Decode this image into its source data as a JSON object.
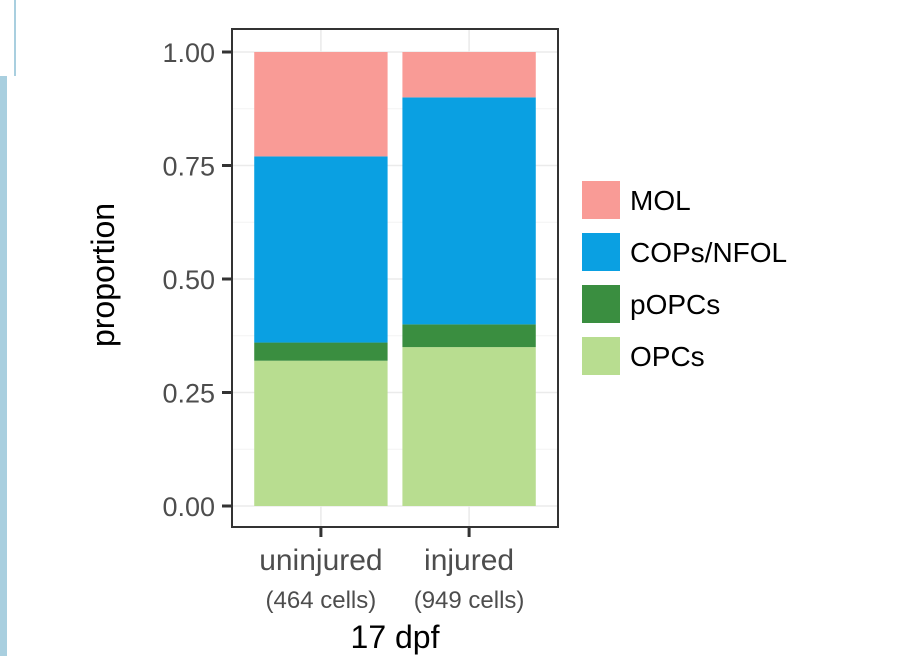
{
  "chart_data": {
    "type": "bar",
    "stacked": true,
    "categories": [
      "uninjured",
      "injured"
    ],
    "category_sublabels": [
      "(464 cells)",
      "(949 cells)"
    ],
    "series": [
      {
        "name": "OPCs",
        "color": "#b8dd90",
        "values": [
          0.32,
          0.35
        ]
      },
      {
        "name": "pOPCs",
        "color": "#3a8e40",
        "values": [
          0.04,
          0.05
        ]
      },
      {
        "name": "COPs/NFOL",
        "color": "#0aa0e2",
        "values": [
          0.41,
          0.5
        ]
      },
      {
        "name": "MOL",
        "color": "#f99b96",
        "values": [
          0.23,
          0.1
        ]
      }
    ],
    "legend_order": [
      "MOL",
      "COPs/NFOL",
      "pOPCs",
      "OPCs"
    ],
    "legend_position": "right",
    "xlabel": "17 dpf",
    "ylabel": "proportion",
    "ylim": [
      0,
      1
    ],
    "yticks": [
      "0.00",
      "0.25",
      "0.50",
      "0.75",
      "1.00"
    ],
    "grid": true
  }
}
